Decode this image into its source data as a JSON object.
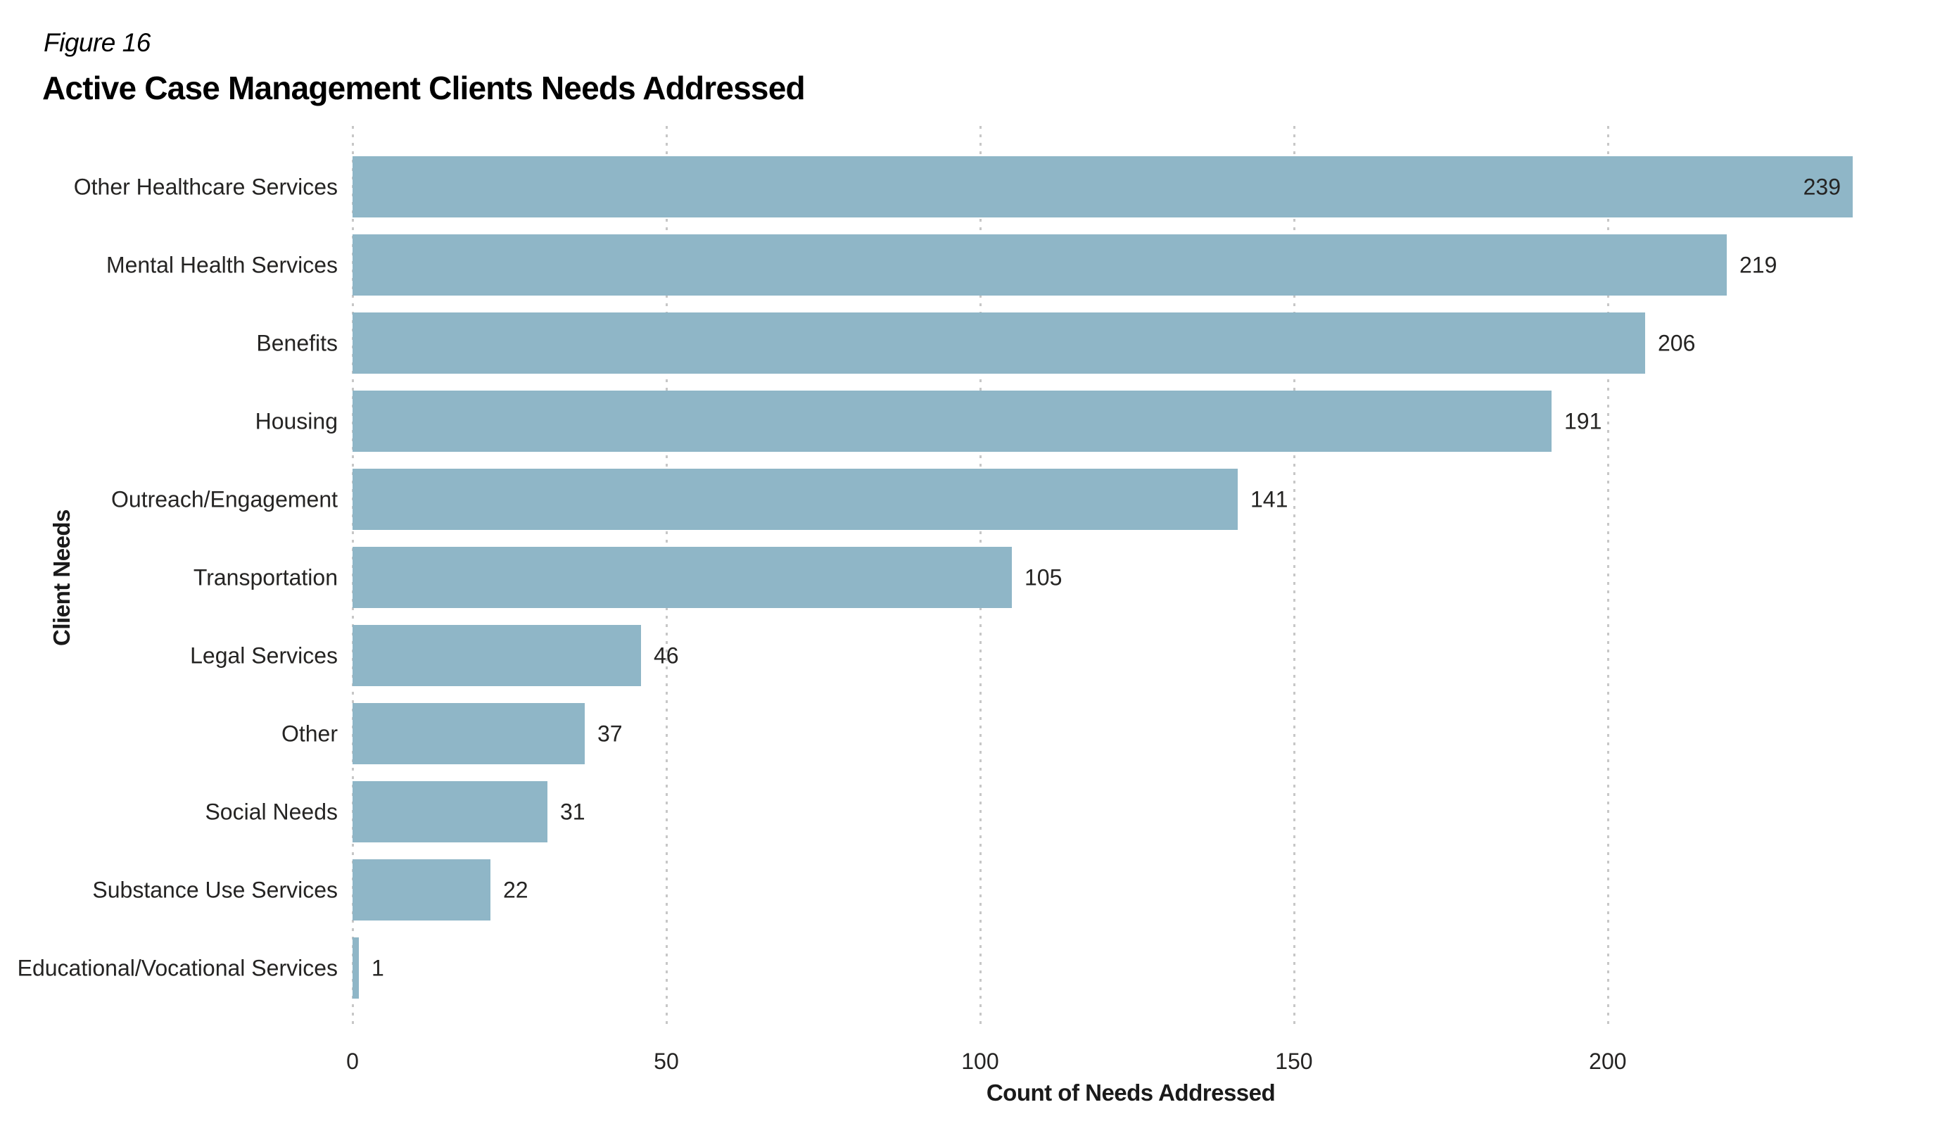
{
  "figure_label": "Figure 16",
  "title": "Active Case Management Clients Needs Addressed",
  "chart_data": {
    "type": "bar",
    "orientation": "horizontal",
    "title": "Active Case Management Clients Needs Addressed",
    "categories": [
      "Other Healthcare Services",
      "Mental Health Services",
      "Benefits",
      "Housing",
      "Outreach/Engagement",
      "Transportation",
      "Legal Services",
      "Other",
      "Social Needs",
      "Substance Use Services",
      "Educational/Vocational Services"
    ],
    "values": [
      239,
      219,
      206,
      191,
      141,
      105,
      46,
      37,
      31,
      22,
      1
    ],
    "xlabel": "Count of Needs Addressed",
    "ylabel": "Client Needs",
    "xlim": [
      0,
      248
    ],
    "xticks": [
      0,
      50,
      100,
      150,
      200
    ],
    "grid": "vertical-dotted",
    "legend_position": "none",
    "bar_color": "#8FB6C7",
    "gridline_color": "#C7C7C7",
    "text_color": "#252423"
  }
}
